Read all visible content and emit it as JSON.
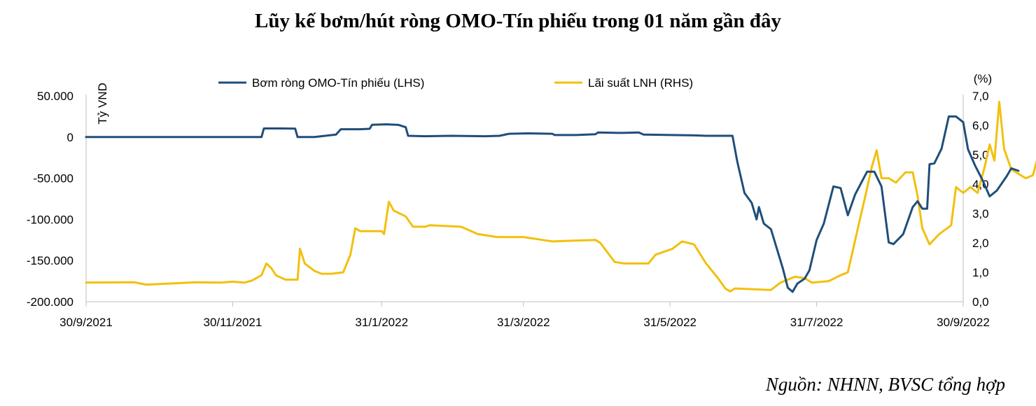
{
  "title": "Lũy kế bơm/hút ròng OMO-Tín phiếu trong 01 năm gần đây",
  "source": "Nguồn: NHNN, BVSC tổng hợp",
  "chart_data": {
    "type": "line",
    "ylabel_left": "Tỷ VND",
    "ylabel_right": "(%)",
    "legend_position": "top",
    "grid": false,
    "x_tick_labels": [
      "30/9/2021",
      "30/11/2021",
      "31/1/2022",
      "31/3/2022",
      "31/5/2022",
      "31/7/2022",
      "30/9/2022"
    ],
    "y_left_ticks": [
      "50.000",
      "0",
      "-50.000",
      "-100.000",
      "-150.000",
      "-200.000"
    ],
    "y_left_range": [
      -200000,
      50000
    ],
    "y_right_ticks": [
      "7,0",
      "6,0",
      "5,0",
      "4,0",
      "3,0",
      "2,0",
      "1,0",
      "0,0"
    ],
    "y_right_range": [
      0,
      7
    ],
    "series": [
      {
        "name": "Bơm ròng OMO-Tín phiếu (LHS)",
        "axis": "left",
        "color": "#1f4e79",
        "points": [
          [
            "2021-09-30",
            0
          ],
          [
            "2021-10-15",
            0
          ],
          [
            "2021-11-01",
            0
          ],
          [
            "2021-11-20",
            0
          ],
          [
            "2021-12-12",
            0
          ],
          [
            "2021-12-13",
            10500
          ],
          [
            "2021-12-20",
            10500
          ],
          [
            "2021-12-26",
            10200
          ],
          [
            "2021-12-27",
            0
          ],
          [
            "2022-01-03",
            0
          ],
          [
            "2022-01-12",
            3000
          ],
          [
            "2022-01-14",
            9500
          ],
          [
            "2022-01-22",
            9500
          ],
          [
            "2022-01-26",
            10000
          ],
          [
            "2022-01-27",
            15000
          ],
          [
            "2022-02-02",
            15500
          ],
          [
            "2022-02-07",
            14800
          ],
          [
            "2022-02-10",
            12000
          ],
          [
            "2022-02-11",
            1500
          ],
          [
            "2022-02-18",
            1000
          ],
          [
            "2022-03-01",
            1500
          ],
          [
            "2022-03-15",
            1000
          ],
          [
            "2022-03-21",
            1500
          ],
          [
            "2022-03-25",
            4000
          ],
          [
            "2022-04-02",
            4500
          ],
          [
            "2022-04-12",
            4000
          ],
          [
            "2022-04-13",
            2500
          ],
          [
            "2022-04-22",
            2500
          ],
          [
            "2022-04-30",
            3500
          ],
          [
            "2022-05-01",
            5500
          ],
          [
            "2022-05-10",
            5000
          ],
          [
            "2022-05-18",
            5500
          ],
          [
            "2022-05-20",
            3000
          ],
          [
            "2022-06-10",
            2000
          ],
          [
            "2022-06-15",
            1500
          ],
          [
            "2022-06-26",
            1500
          ],
          [
            "2022-06-28",
            -30000
          ],
          [
            "2022-07-01",
            -68000
          ],
          [
            "2022-07-04",
            -80000
          ],
          [
            "2022-07-06",
            -100000
          ],
          [
            "2022-07-07",
            -85000
          ],
          [
            "2022-07-09",
            -105000
          ],
          [
            "2022-07-12",
            -112000
          ],
          [
            "2022-07-17",
            -160000
          ],
          [
            "2022-07-19",
            -183000
          ],
          [
            "2022-07-21",
            -188000
          ],
          [
            "2022-07-23",
            -178000
          ],
          [
            "2022-07-26",
            -172000
          ],
          [
            "2022-07-28",
            -162000
          ],
          [
            "2022-07-31",
            -125000
          ],
          [
            "2022-08-03",
            -105000
          ],
          [
            "2022-08-07",
            -60000
          ],
          [
            "2022-08-10",
            -62000
          ],
          [
            "2022-08-13",
            -95000
          ],
          [
            "2022-08-16",
            -70000
          ],
          [
            "2022-08-21",
            -42000
          ],
          [
            "2022-08-24",
            -42000
          ],
          [
            "2022-08-27",
            -60000
          ],
          [
            "2022-08-30",
            -128000
          ],
          [
            "2022-09-01",
            -130000
          ],
          [
            "2022-09-05",
            -118000
          ],
          [
            "2022-09-09",
            -85000
          ],
          [
            "2022-09-11",
            -78000
          ],
          [
            "2022-09-13",
            -87000
          ],
          [
            "2022-09-15",
            -87000
          ],
          [
            "2022-09-16",
            -33000
          ],
          [
            "2022-09-18",
            -32000
          ],
          [
            "2022-09-21",
            -14000
          ],
          [
            "2022-09-24",
            25000
          ],
          [
            "2022-09-27",
            25000
          ],
          [
            "2022-09-30",
            18000
          ],
          [
            "2022-10-02",
            -15000
          ],
          [
            "2022-10-05",
            -35000
          ],
          [
            "2022-10-08",
            -52000
          ],
          [
            "2022-10-11",
            -72000
          ],
          [
            "2022-10-14",
            -65000
          ],
          [
            "2022-10-18",
            -48000
          ],
          [
            "2022-10-20",
            -38000
          ],
          [
            "2022-10-23",
            -41000
          ]
        ]
      },
      {
        "name": "Lãi suất LNH (RHS)",
        "axis": "right",
        "color": "#f2c00e",
        "points": [
          [
            "2021-09-30",
            0.65
          ],
          [
            "2021-10-20",
            0.66
          ],
          [
            "2021-10-25",
            0.58
          ],
          [
            "2021-11-15",
            0.66
          ],
          [
            "2021-11-25",
            0.65
          ],
          [
            "2021-11-30",
            0.68
          ],
          [
            "2021-12-05",
            0.65
          ],
          [
            "2021-12-08",
            0.72
          ],
          [
            "2021-12-12",
            0.9
          ],
          [
            "2021-12-14",
            1.3
          ],
          [
            "2021-12-16",
            1.15
          ],
          [
            "2021-12-18",
            0.9
          ],
          [
            "2021-12-22",
            0.75
          ],
          [
            "2021-12-27",
            0.75
          ],
          [
            "2021-12-28",
            1.8
          ],
          [
            "2021-12-30",
            1.3
          ],
          [
            "2022-01-03",
            1.05
          ],
          [
            "2022-01-06",
            0.95
          ],
          [
            "2022-01-10",
            0.95
          ],
          [
            "2022-01-15",
            1.0
          ],
          [
            "2022-01-18",
            1.6
          ],
          [
            "2022-01-20",
            2.5
          ],
          [
            "2022-01-22",
            2.4
          ],
          [
            "2022-01-31",
            2.4
          ],
          [
            "2022-02-01",
            2.3
          ],
          [
            "2022-02-03",
            3.4
          ],
          [
            "2022-02-05",
            3.1
          ],
          [
            "2022-02-10",
            2.9
          ],
          [
            "2022-02-13",
            2.55
          ],
          [
            "2022-02-18",
            2.55
          ],
          [
            "2022-02-20",
            2.6
          ],
          [
            "2022-03-05",
            2.55
          ],
          [
            "2022-03-12",
            2.3
          ],
          [
            "2022-03-20",
            2.2
          ],
          [
            "2022-03-31",
            2.2
          ],
          [
            "2022-04-08",
            2.1
          ],
          [
            "2022-04-12",
            2.05
          ],
          [
            "2022-04-30",
            2.1
          ],
          [
            "2022-05-02",
            2.0
          ],
          [
            "2022-05-08",
            1.35
          ],
          [
            "2022-05-12",
            1.3
          ],
          [
            "2022-05-22",
            1.3
          ],
          [
            "2022-05-25",
            1.6
          ],
          [
            "2022-06-01",
            1.8
          ],
          [
            "2022-06-05",
            2.05
          ],
          [
            "2022-06-10",
            1.95
          ],
          [
            "2022-06-15",
            1.3
          ],
          [
            "2022-06-20",
            0.8
          ],
          [
            "2022-06-23",
            0.45
          ],
          [
            "2022-06-25",
            0.35
          ],
          [
            "2022-06-27",
            0.45
          ],
          [
            "2022-07-12",
            0.4
          ],
          [
            "2022-07-16",
            0.65
          ],
          [
            "2022-07-22",
            0.85
          ],
          [
            "2022-07-26",
            0.8
          ],
          [
            "2022-07-29",
            0.65
          ],
          [
            "2022-08-05",
            0.7
          ],
          [
            "2022-08-10",
            0.9
          ],
          [
            "2022-08-13",
            1.0
          ],
          [
            "2022-08-18",
            2.8
          ],
          [
            "2022-08-20",
            3.5
          ],
          [
            "2022-08-23",
            4.6
          ],
          [
            "2022-08-25",
            5.15
          ],
          [
            "2022-08-27",
            4.2
          ],
          [
            "2022-08-30",
            4.2
          ],
          [
            "2022-09-02",
            4.05
          ],
          [
            "2022-09-06",
            4.4
          ],
          [
            "2022-09-09",
            4.4
          ],
          [
            "2022-09-11",
            3.6
          ],
          [
            "2022-09-13",
            2.5
          ],
          [
            "2022-09-16",
            1.95
          ],
          [
            "2022-09-20",
            2.3
          ],
          [
            "2022-09-25",
            2.6
          ],
          [
            "2022-09-27",
            3.9
          ],
          [
            "2022-09-30",
            3.7
          ],
          [
            "2022-10-03",
            3.9
          ],
          [
            "2022-10-06",
            3.7
          ],
          [
            "2022-10-09",
            4.6
          ],
          [
            "2022-10-11",
            5.35
          ],
          [
            "2022-10-13",
            4.8
          ],
          [
            "2022-10-15",
            6.8
          ],
          [
            "2022-10-17",
            5.2
          ],
          [
            "2022-10-20",
            4.5
          ],
          [
            "2022-10-23",
            4.35
          ],
          [
            "2022-10-26",
            4.2
          ],
          [
            "2022-10-29",
            4.3
          ],
          [
            "2022-11-01",
            5.2
          ],
          [
            "2022-11-05",
            5.25
          ],
          [
            "2022-11-08",
            5.2
          ],
          [
            "2022-11-12",
            5.0
          ]
        ]
      }
    ]
  }
}
